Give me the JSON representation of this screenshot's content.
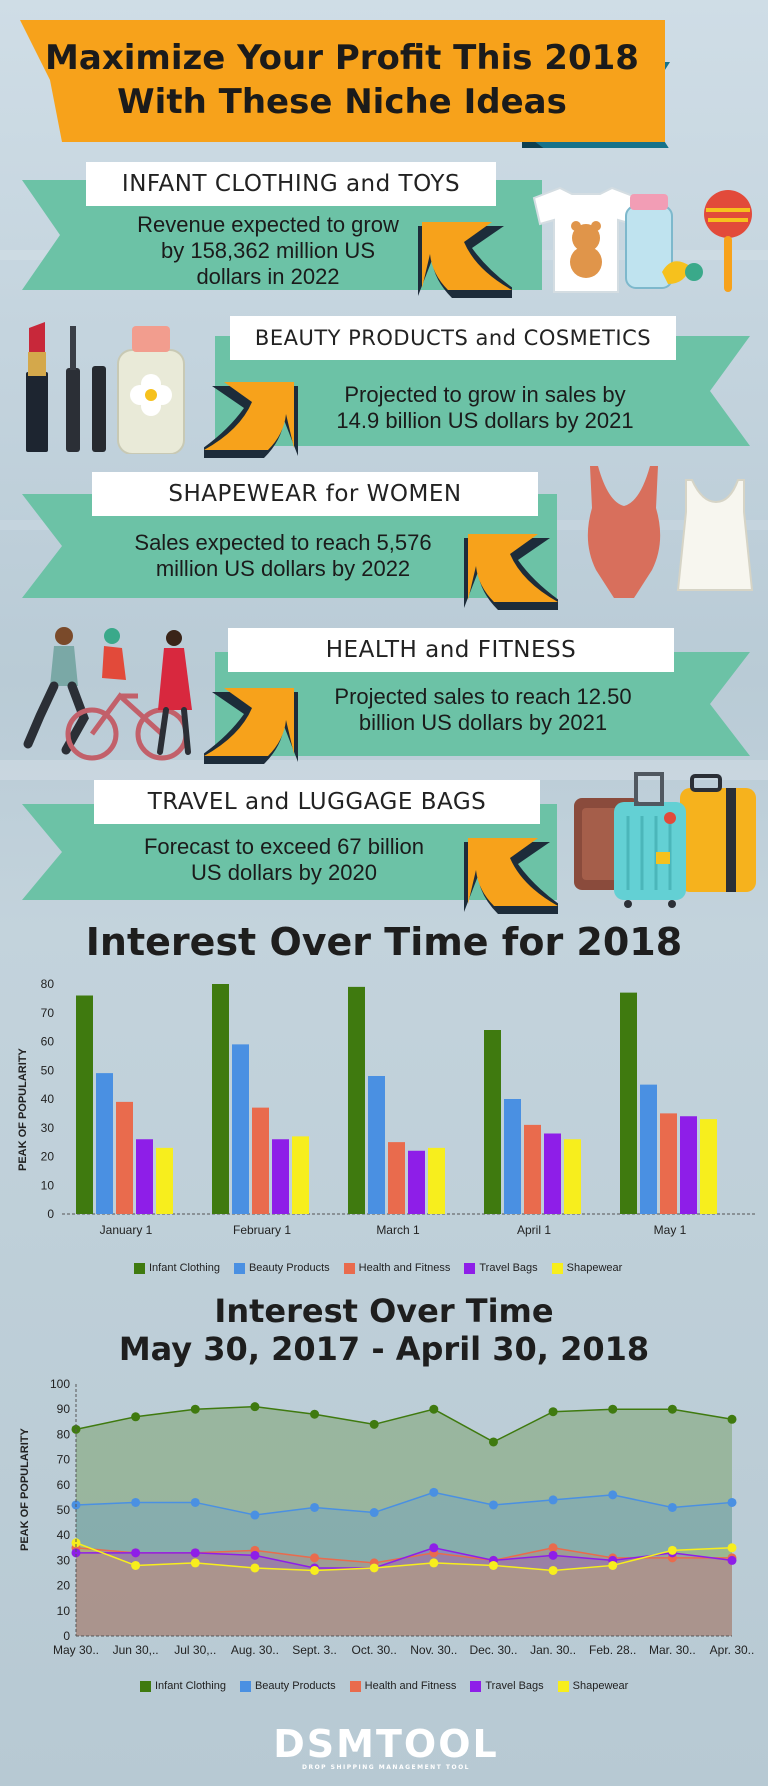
{
  "header": {
    "title_line1": "Maximize Your Profit This 2018",
    "title_line2": "With These Niche Ideas"
  },
  "niches": [
    {
      "label": "INFANT CLOTHING and TOYS",
      "line1": "Revenue expected to grow",
      "line2": "by 158,362 million US",
      "line3": "dollars in 2022",
      "icon": "baby-items-icon"
    },
    {
      "label": "BEAUTY PRODUCTS and COSMETICS",
      "line1": "Projected to grow in sales by",
      "line2": "14.9 billion US dollars by 2021",
      "line3": "",
      "icon": "cosmetics-icon"
    },
    {
      "label": "SHAPEWEAR for WOMEN",
      "line1": "Sales expected to reach 5,576",
      "line2": "million US dollars by 2022",
      "line3": "",
      "icon": "shapewear-icon"
    },
    {
      "label": "HEALTH and FITNESS",
      "line1": "Projected sales to reach 12.50",
      "line2": "billion US dollars by 2021",
      "line3": "",
      "icon": "fitness-people-icon"
    },
    {
      "label": "TRAVEL and LUGGAGE BAGS",
      "line1": "Forecast to exceed 67 billion",
      "line2": "US dollars by 2020",
      "line3": "",
      "icon": "luggage-icon"
    }
  ],
  "colors": {
    "orange": "#f7a21b",
    "teal": "#6cc2a6",
    "navy": "#1d2c3a",
    "infant": "#3f7a0f",
    "beauty": "#4a90e2",
    "health": "#e96b4d",
    "travel": "#8e1ee8",
    "shapewear": "#f7ee1d"
  },
  "bar_section": {
    "title": "Interest Over Time for 2018"
  },
  "line_section": {
    "title_line1": "Interest Over Time",
    "title_line2": "May 30, 2017 - April 30, 2018"
  },
  "chart_data": [
    {
      "type": "bar",
      "title": "Interest Over Time for 2018",
      "xlabel": "",
      "ylabel": "PEAK OF POPULARITY",
      "ylim": [
        0,
        80
      ],
      "yticks": [
        0,
        10,
        20,
        30,
        40,
        50,
        60,
        70,
        80
      ],
      "categories": [
        "January 1",
        "February 1",
        "March 1",
        "April 1",
        "May 1"
      ],
      "series": [
        {
          "name": "Infant Clothing",
          "values": [
            76,
            80,
            79,
            64,
            77
          ]
        },
        {
          "name": "Beauty Products",
          "values": [
            49,
            59,
            48,
            40,
            45
          ]
        },
        {
          "name": "Health and Fitness",
          "values": [
            39,
            37,
            25,
            31,
            35
          ]
        },
        {
          "name": "Travel Bags",
          "values": [
            26,
            26,
            22,
            28,
            34
          ]
        },
        {
          "name": "Shapewear",
          "values": [
            23,
            27,
            23,
            26,
            33
          ]
        }
      ],
      "grid": false,
      "legend": "bottom"
    },
    {
      "type": "area",
      "title": "Interest Over Time May 30, 2017 - April 30, 2018",
      "xlabel": "",
      "ylabel": "PEAK OF POPULARITY",
      "ylim": [
        0,
        100
      ],
      "yticks": [
        0,
        10,
        20,
        30,
        40,
        50,
        60,
        70,
        80,
        90,
        100
      ],
      "categories": [
        "May 30..",
        "Jun 30,..",
        "Jul 30,..",
        "Aug. 30..",
        "Sept. 3..",
        "Oct. 30..",
        "Nov. 30..",
        "Dec. 30..",
        "Jan. 30..",
        "Feb. 28..",
        "Mar. 30..",
        "Apr. 30.."
      ],
      "series": [
        {
          "name": "Infant Clothing",
          "values": [
            82,
            87,
            90,
            91,
            88,
            84,
            90,
            77,
            89,
            90,
            90,
            86
          ]
        },
        {
          "name": "Beauty Products",
          "values": [
            52,
            53,
            53,
            48,
            51,
            49,
            57,
            52,
            54,
            56,
            51,
            53
          ]
        },
        {
          "name": "Health and Fitness",
          "values": [
            35,
            33,
            33,
            34,
            31,
            29,
            33,
            30,
            35,
            31,
            31,
            31
          ]
        },
        {
          "name": "Travel Bags",
          "values": [
            33,
            33,
            33,
            32,
            27,
            27,
            35,
            30,
            32,
            30,
            33,
            30
          ]
        },
        {
          "name": "Shapewear",
          "values": [
            37,
            28,
            29,
            27,
            26,
            27,
            29,
            28,
            26,
            28,
            34,
            35
          ]
        }
      ],
      "grid": false,
      "legend": "bottom"
    }
  ],
  "footer": {
    "logo": "DSMTOOL",
    "tagline": "DROP SHIPPING MANAGEMENT TOOL"
  }
}
